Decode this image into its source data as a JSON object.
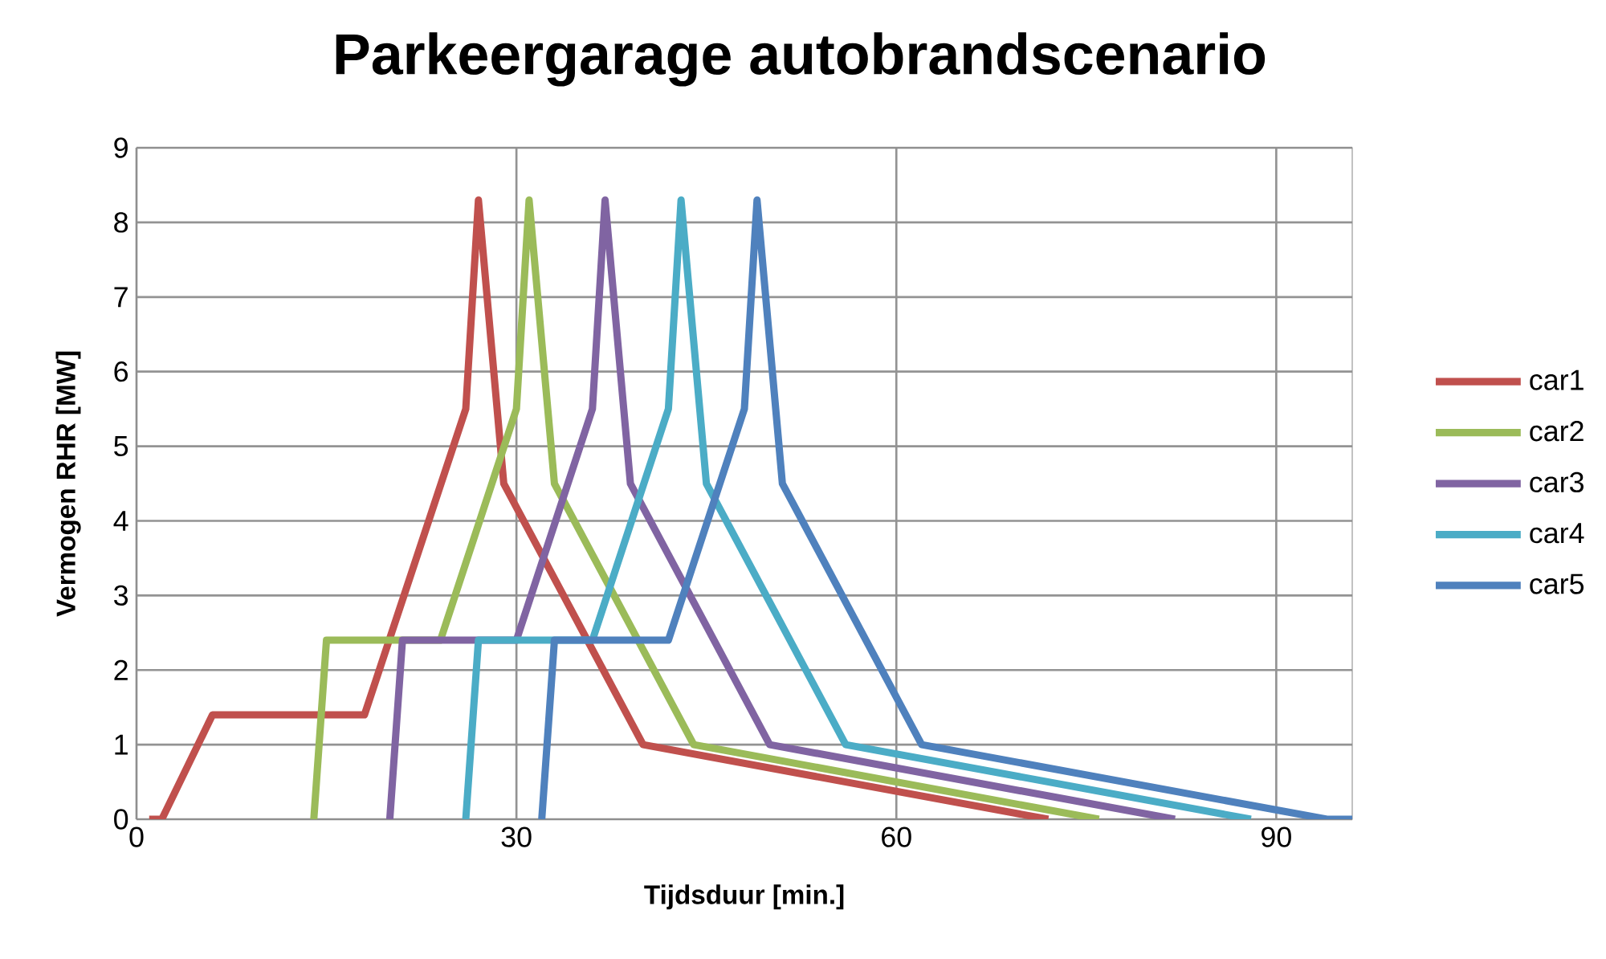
{
  "chart_data": {
    "type": "line",
    "title": "Parkeergarage autobrandscenario",
    "xlabel": "Tijdsduur  [min.]",
    "ylabel": "Vermogen RHR  [MW]",
    "xlim": [
      0,
      96
    ],
    "xticks": [
      0,
      30,
      60,
      90
    ],
    "ylim": [
      0,
      9
    ],
    "yticks": [
      0,
      1,
      2,
      3,
      4,
      5,
      6,
      7,
      8,
      9
    ],
    "grid": true,
    "legend": "right",
    "line_style": "solid",
    "series": [
      {
        "name": "car1",
        "color": "#c0504d",
        "x": [
          1,
          2,
          6,
          18,
          26,
          27,
          29,
          40,
          72
        ],
        "values": [
          0,
          0,
          1.4,
          1.4,
          5.5,
          8.3,
          4.5,
          1,
          0
        ]
      },
      {
        "name": "car2",
        "color": "#9bbb59",
        "x": [
          14,
          15,
          24,
          30,
          31,
          33,
          44,
          76
        ],
        "values": [
          0,
          2.4,
          2.4,
          5.5,
          8.3,
          4.5,
          1,
          0
        ]
      },
      {
        "name": "car3",
        "color": "#8064a2",
        "x": [
          20,
          21,
          30,
          36,
          37,
          39,
          50,
          82
        ],
        "values": [
          0,
          2.4,
          2.4,
          5.5,
          8.3,
          4.5,
          1,
          0
        ]
      },
      {
        "name": "car4",
        "color": "#4bacc6",
        "x": [
          26,
          27,
          36,
          42,
          43,
          45,
          56,
          88
        ],
        "values": [
          0,
          2.4,
          2.4,
          5.5,
          8.3,
          4.5,
          1,
          0
        ]
      },
      {
        "name": "car5",
        "color": "#4f81bd",
        "x": [
          32,
          33,
          42,
          48,
          49,
          51,
          62,
          94,
          96
        ],
        "values": [
          0,
          2.4,
          2.4,
          5.5,
          8.3,
          4.5,
          1,
          0,
          0
        ]
      }
    ]
  }
}
